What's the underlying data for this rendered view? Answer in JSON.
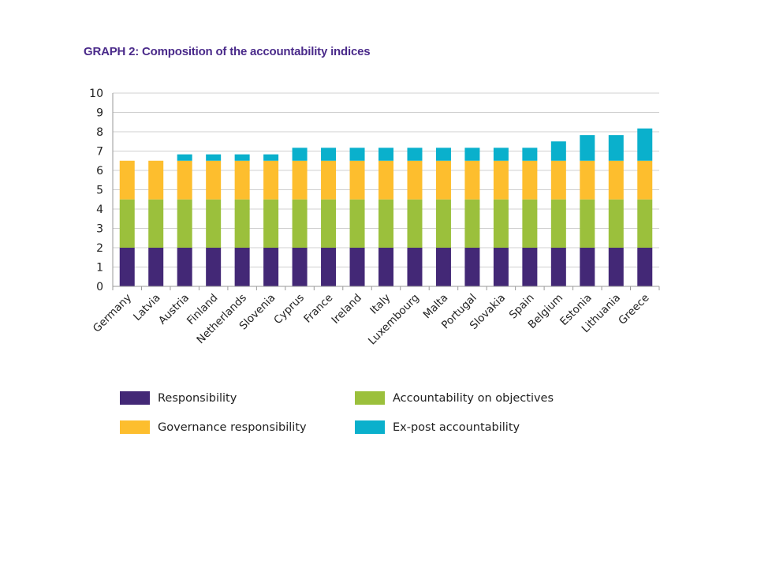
{
  "title": "GRAPH 2: Composition of the accountability indices",
  "colors": {
    "responsibility": "#432876",
    "accountability_on_objectives": "#9bc03c",
    "governance_responsibility": "#fdbe2e",
    "ex_post_accountability": "#0ab0cc",
    "grid": "#d0d0d0",
    "axis": "#9a9a9a",
    "title": "#4a2a8a"
  },
  "chart_data": {
    "type": "bar",
    "stacked": true,
    "title": "GRAPH 2: Composition of the accountability indices",
    "xlabel": "",
    "ylabel": "",
    "ylim": [
      0,
      10
    ],
    "yticks": [
      0,
      1,
      2,
      3,
      4,
      5,
      6,
      7,
      8,
      9,
      10
    ],
    "grid": true,
    "legend_position": "bottom",
    "categories": [
      "Germany",
      "Latvia",
      "Austria",
      "Finland",
      "Netherlands",
      "Slovenia",
      "Cyprus",
      "France",
      "Ireland",
      "Italy",
      "Luxembourg",
      "Malta",
      "Portugal",
      "Slovakia",
      "Spain",
      "Belgium",
      "Estonia",
      "Lithuania",
      "Greece"
    ],
    "series": [
      {
        "name": "Responsibility",
        "color_key": "responsibility",
        "values": [
          2,
          2,
          2,
          2,
          2,
          2,
          2,
          2,
          2,
          2,
          2,
          2,
          2,
          2,
          2,
          2,
          2,
          2,
          2
        ]
      },
      {
        "name": "Accountability on objectives",
        "color_key": "accountability_on_objectives",
        "values": [
          2.5,
          2.5,
          2.5,
          2.5,
          2.5,
          2.5,
          2.5,
          2.5,
          2.5,
          2.5,
          2.5,
          2.5,
          2.5,
          2.5,
          2.5,
          2.5,
          2.5,
          2.5,
          2.5
        ]
      },
      {
        "name": "Governance responsibility",
        "color_key": "governance_responsibility",
        "values": [
          2,
          2,
          2,
          2,
          2,
          2,
          2,
          2,
          2,
          2,
          2,
          2,
          2,
          2,
          2,
          2,
          2,
          2,
          2
        ]
      },
      {
        "name": "Ex-post accountability",
        "color_key": "ex_post_accountability",
        "values": [
          0,
          0,
          0.33,
          0.33,
          0.33,
          0.33,
          0.67,
          0.67,
          0.67,
          0.67,
          0.67,
          0.67,
          0.67,
          0.67,
          0.67,
          1,
          1.33,
          1.33,
          1.67
        ]
      }
    ]
  },
  "legend": {
    "items": [
      {
        "label": "Responsibility",
        "color_key": "responsibility"
      },
      {
        "label": "Accountability on objectives",
        "color_key": "accountability_on_objectives"
      },
      {
        "label": "Governance responsibility",
        "color_key": "governance_responsibility"
      },
      {
        "label": "Ex-post accountability",
        "color_key": "ex_post_accountability"
      }
    ]
  }
}
